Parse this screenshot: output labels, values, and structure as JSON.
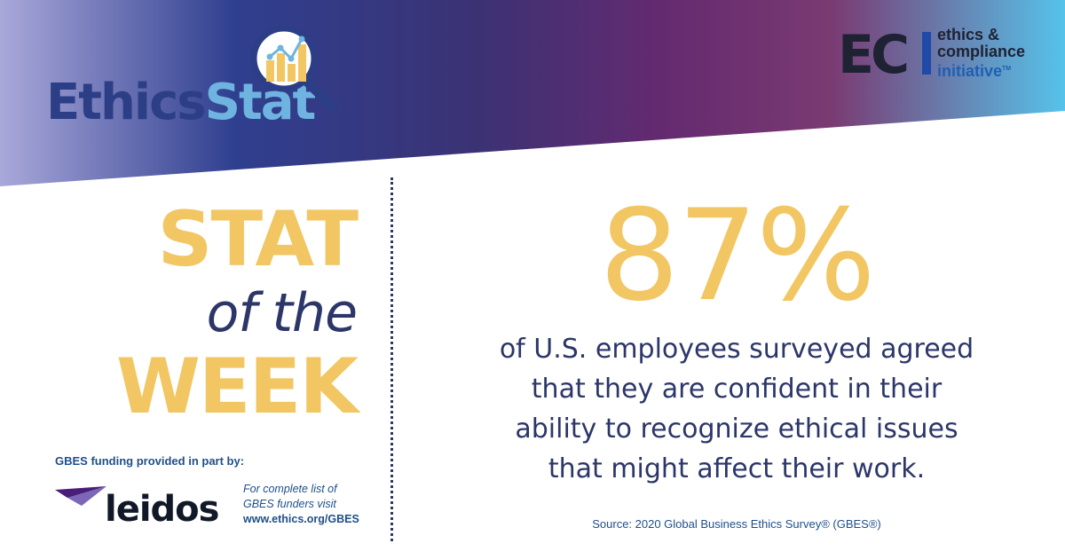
{
  "brand": {
    "word1": "Ethics",
    "word2": "Stat",
    "icon": "magnifier-chart-icon"
  },
  "eci": {
    "mark": "EC",
    "line1": "ethics &",
    "line2": "compliance",
    "line3": "initiative",
    "tm": "TM"
  },
  "headline": {
    "line1": "STAT",
    "line2": "of the",
    "line3": "WEEK"
  },
  "stat": {
    "value": "87%",
    "description": [
      "of U.S. employees surveyed agreed",
      "that they are confident in their",
      "ability to recognize ethical issues",
      "that might affect their work."
    ],
    "source": "Source: 2020 Global Business Ethics Survey® (GBES®)"
  },
  "funding": {
    "label": "GBES funding provided in part by:",
    "sponsor": "leidos",
    "note_line1": "For complete list of",
    "note_line2": "GBES funders visit",
    "url": "www.ethics.org/GBES"
  },
  "colors": {
    "gold": "#f2c662",
    "navy": "#2c3669",
    "banner_gradient": [
      "#a7a6d8",
      "#2e3f8d",
      "#522b74",
      "#77336b",
      "#5abfe6"
    ]
  }
}
